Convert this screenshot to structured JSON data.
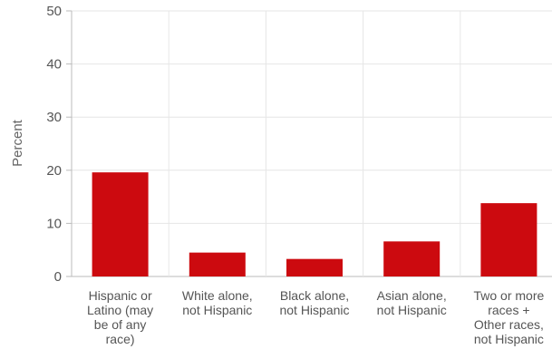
{
  "chart_data": {
    "type": "bar",
    "ylabel": "Percent",
    "ylim": [
      0,
      50
    ],
    "yticks": [
      0,
      10,
      20,
      30,
      40,
      50
    ],
    "categories": [
      [
        "Hispanic or",
        "Latino (may",
        "be of any",
        "race)"
      ],
      [
        "White alone,",
        "not Hispanic"
      ],
      [
        "Black alone,",
        "not Hispanic"
      ],
      [
        "Asian alone,",
        "not Hispanic"
      ],
      [
        "Two or more",
        "races +",
        "Other races,",
        "not Hispanic"
      ]
    ],
    "values": [
      19.6,
      4.5,
      3.3,
      6.6,
      13.8
    ],
    "bar_color": "#cc0a0f",
    "grid": true
  }
}
